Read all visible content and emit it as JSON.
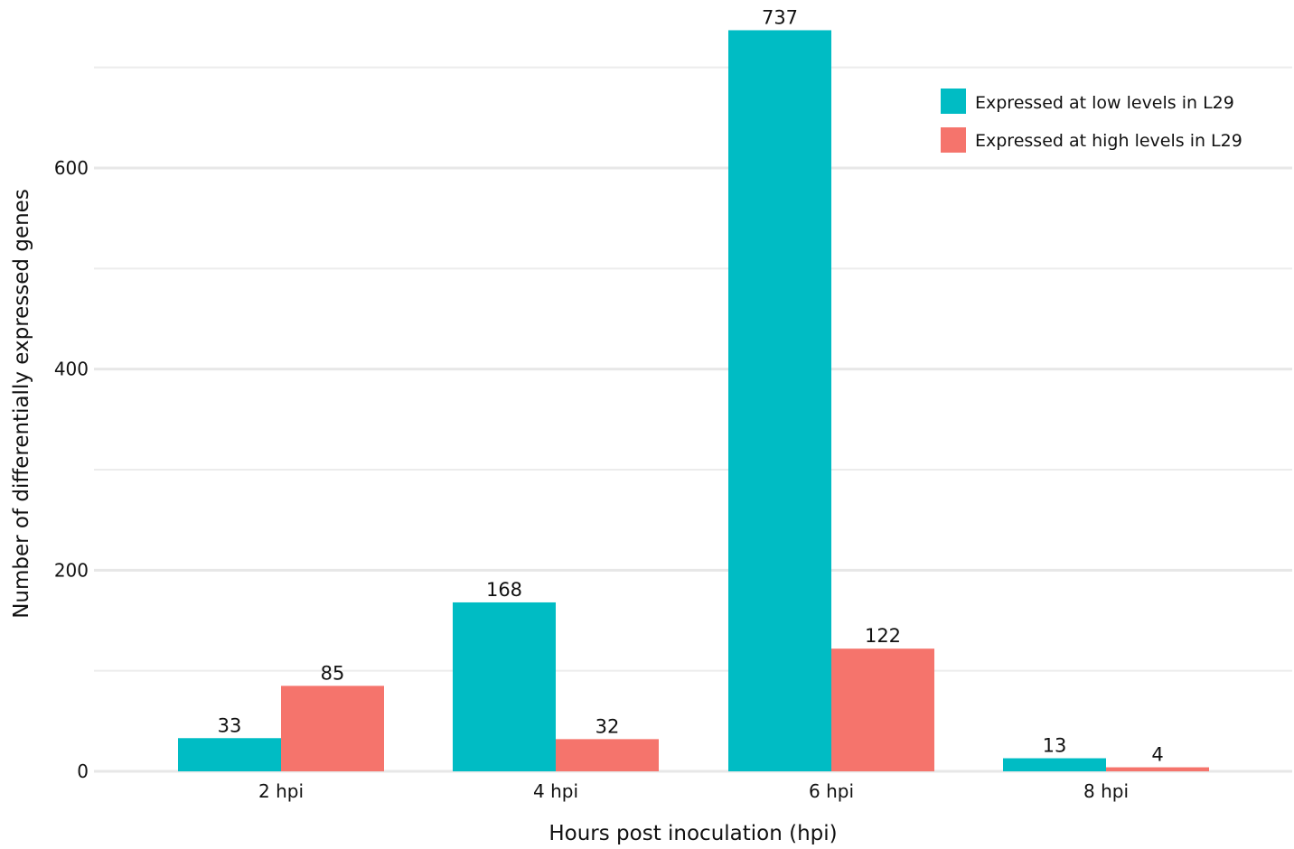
{
  "chart_data": {
    "type": "bar",
    "title": "",
    "xlabel": "Hours post inoculation (hpi)",
    "ylabel": "Number of differentially expressed genes",
    "categories": [
      "2 hpi",
      "4 hpi",
      "6 hpi",
      "8 hpi"
    ],
    "series": [
      {
        "name": "Expressed at low levels in L29",
        "color": "#00BCC4",
        "values": [
          33,
          168,
          737,
          13
        ]
      },
      {
        "name": "Expressed at high levels in L29",
        "color": "#F5746C",
        "values": [
          85,
          32,
          122,
          4
        ]
      }
    ],
    "ylim": [
      0,
      700
    ],
    "y_ticks": [
      0,
      200,
      400,
      600
    ],
    "y_minor_gridlines": [
      100,
      300,
      500,
      700
    ],
    "grid": true,
    "legend_position": "top-right",
    "data_labels": true
  }
}
